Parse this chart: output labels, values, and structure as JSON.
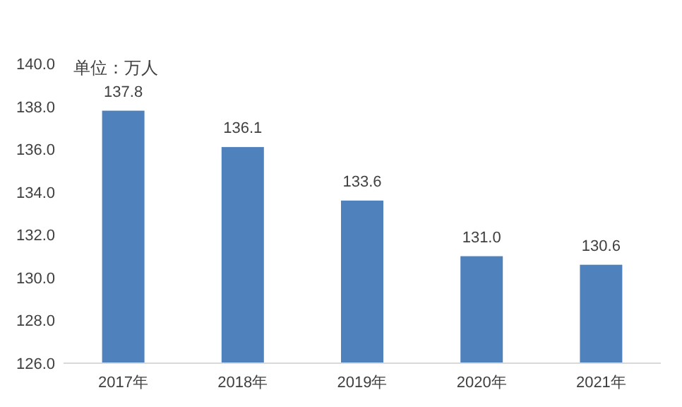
{
  "chart_data": {
    "type": "bar",
    "annotations": [
      "单位：万人"
    ],
    "categories": [
      "2017年",
      "2018年",
      "2019年",
      "2020年",
      "2021年"
    ],
    "values": [
      137.8,
      136.1,
      133.6,
      131.0,
      130.6
    ],
    "value_labels": [
      "137.8",
      "136.1",
      "133.6",
      "131.0",
      "130.6"
    ],
    "color": "#4f81bd",
    "ylim": [
      126,
      140
    ],
    "yticks": [
      {
        "value": 126,
        "label": "126.0"
      },
      {
        "value": 128,
        "label": "128.0"
      },
      {
        "value": 130,
        "label": "130.0"
      },
      {
        "value": 132,
        "label": "132.0"
      },
      {
        "value": 134,
        "label": "134.0"
      },
      {
        "value": 136,
        "label": "136.0"
      },
      {
        "value": 138,
        "label": "138.0"
      },
      {
        "value": 140,
        "label": "140.0"
      }
    ],
    "grid": false
  }
}
